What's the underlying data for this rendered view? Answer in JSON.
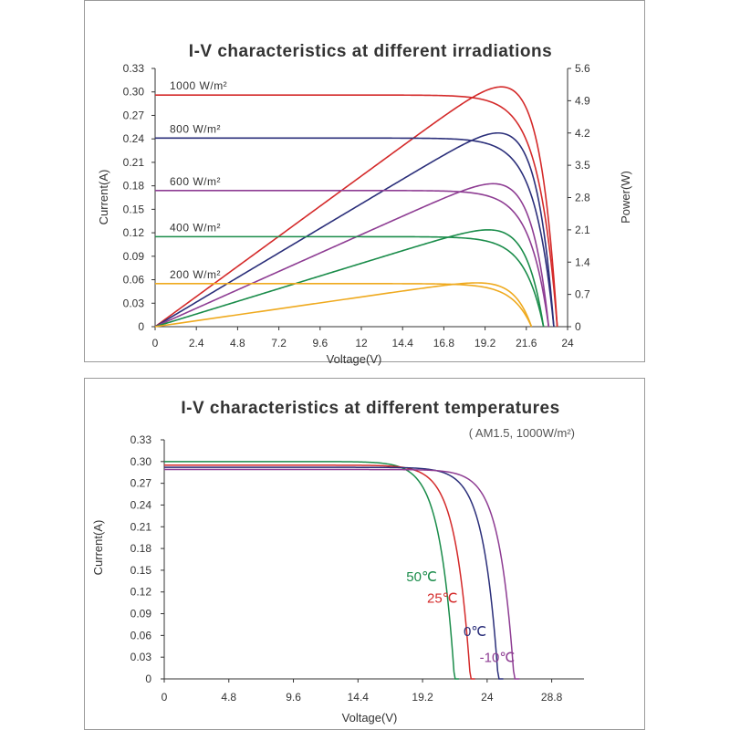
{
  "chart_data": [
    {
      "type": "line",
      "title": "I-V characteristics at different irradiations",
      "xlabel": "Voltage(V)",
      "ylabel": "Current(A)",
      "y2label": "Power(W)",
      "xlim": [
        0,
        24
      ],
      "ylim": [
        0,
        0.33
      ],
      "y2lim": [
        0,
        5.6
      ],
      "xticks": [
        "0",
        "2.4",
        "4.8",
        "7.2",
        "9.6",
        "12",
        "14.4",
        "16.8",
        "19.2",
        "21.6",
        "24"
      ],
      "yticks": [
        "0",
        "0.03",
        "0.06",
        "0.09",
        "0.12",
        "0.15",
        "0.18",
        "0.21",
        "0.24",
        "0.27",
        "0.30",
        "0.33"
      ],
      "y2ticks": [
        "0",
        "0.7",
        "1.4",
        "2.1",
        "2.8",
        "3.5",
        "4.2",
        "4.9",
        "5.6"
      ],
      "grid": false,
      "series": [
        {
          "name": "1000 W/m²",
          "color": "#d42a2a",
          "isc": 0.296,
          "voc": 23.4,
          "pmax": 5.2,
          "vmp": 19.0
        },
        {
          "name": "800 W/m²",
          "color": "#2b2f7a",
          "isc": 0.241,
          "voc": 23.2,
          "pmax": 4.2,
          "vmp": 19.0
        },
        {
          "name": "600 W/m²",
          "color": "#8e3d93",
          "isc": 0.174,
          "voc": 22.9,
          "pmax": 3.1,
          "vmp": 19.0
        },
        {
          "name": "400 W/m²",
          "color": "#1a8c4a",
          "isc": 0.115,
          "voc": 22.6,
          "pmax": 2.1,
          "vmp": 19.0
        },
        {
          "name": "200 W/m²",
          "color": "#efaa1f",
          "isc": 0.055,
          "voc": 21.9,
          "pmax": 0.95,
          "vmp": 19.0
        }
      ]
    },
    {
      "type": "line",
      "title": "I-V characteristics at different temperatures",
      "subtitle": "( AM1.5, 1000W/m²)",
      "xlabel": "Voltage(V)",
      "ylabel": "Current(A)",
      "xlim": [
        0,
        31.2
      ],
      "ylim": [
        0,
        0.33
      ],
      "xticks": [
        "0",
        "4.8",
        "9.6",
        "14.4",
        "19.2",
        "24",
        "28.8"
      ],
      "yticks": [
        "0",
        "0.03",
        "0.06",
        "0.09",
        "0.12",
        "0.15",
        "0.18",
        "0.21",
        "0.24",
        "0.27",
        "0.30",
        "0.33"
      ],
      "grid": false,
      "series": [
        {
          "name": "50℃",
          "color": "#1a8c4a",
          "isc": 0.3,
          "voc": 21.9
        },
        {
          "name": "25℃",
          "color": "#d42a2a",
          "isc": 0.295,
          "voc": 23.1
        },
        {
          "name": "0℃",
          "color": "#2b2f7a",
          "isc": 0.292,
          "voc": 25.2
        },
        {
          "name": "-10℃",
          "color": "#8e3d93",
          "isc": 0.289,
          "voc": 26.4
        }
      ]
    }
  ]
}
